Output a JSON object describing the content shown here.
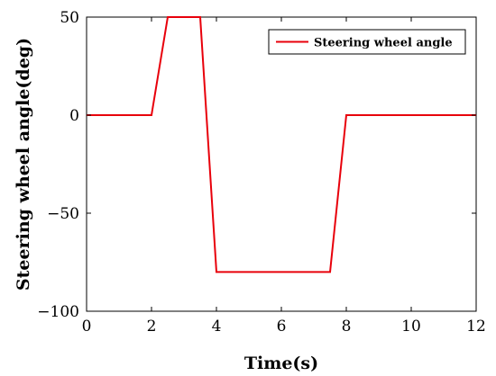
{
  "chart_data": {
    "type": "line",
    "title": "",
    "xlabel": "Time(s)",
    "ylabel": "Steering wheel angle(deg)",
    "xlim": [
      0,
      12
    ],
    "ylim": [
      -100,
      50
    ],
    "xticks": [
      0,
      2,
      4,
      6,
      8,
      10,
      12
    ],
    "yticks": [
      -100,
      -50,
      0,
      50
    ],
    "grid": false,
    "legend_position": "top-right",
    "series": [
      {
        "name": "Steering wheel angle",
        "color": "#e8000b",
        "x": [
          0,
          2,
          2.5,
          3.5,
          4,
          7.5,
          8,
          12
        ],
        "y": [
          0,
          0,
          50,
          50,
          -80,
          -80,
          0,
          0
        ]
      }
    ]
  }
}
